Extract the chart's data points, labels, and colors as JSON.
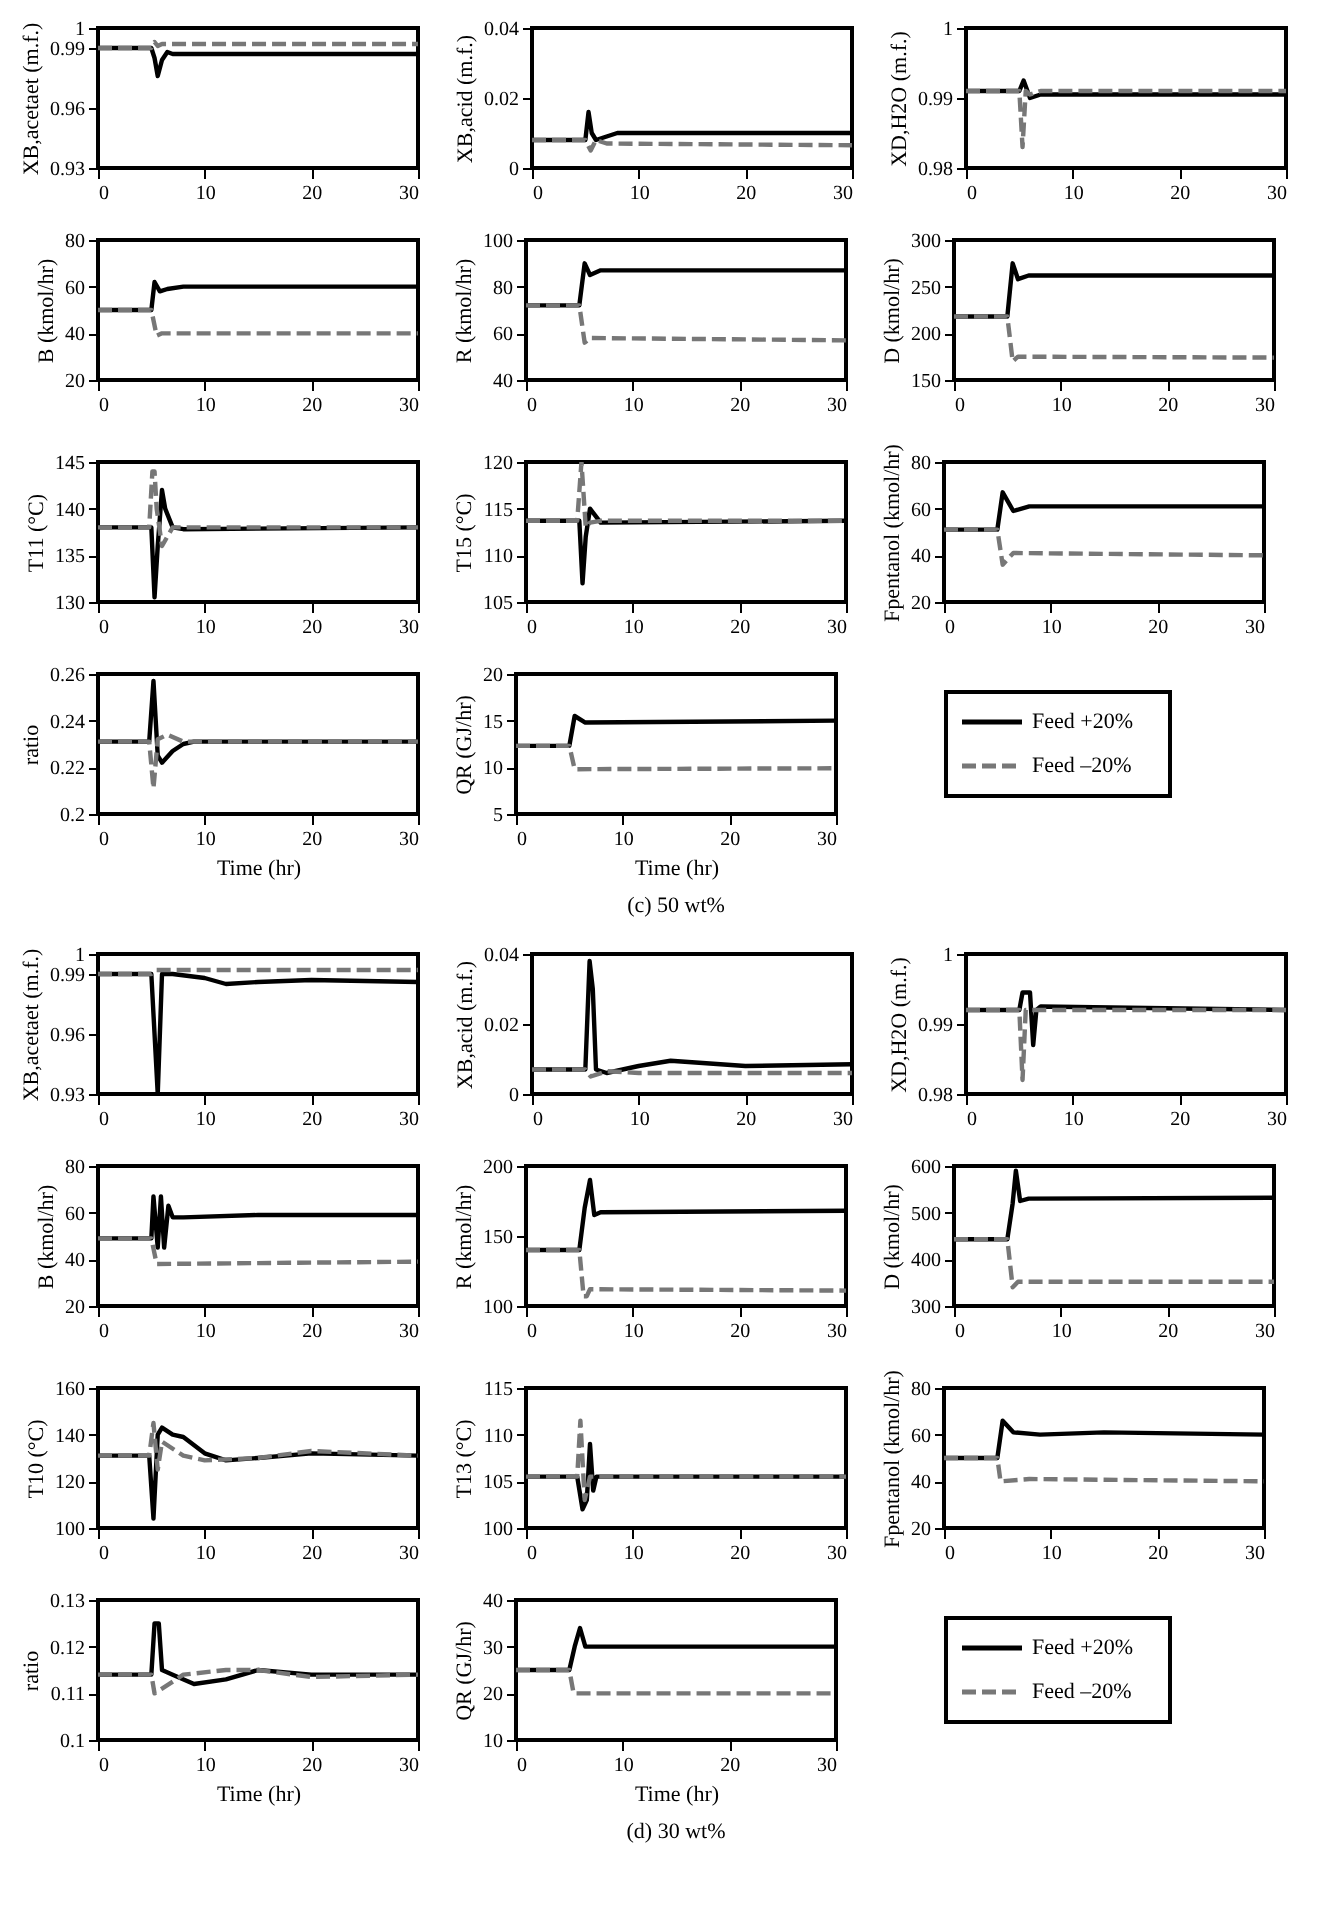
{
  "chart_data": [
    {
      "type": "line",
      "ylabel": "XB,acetaet (m.f.)",
      "xlim": [
        0,
        30
      ],
      "xticks": [
        0,
        10,
        20,
        30
      ],
      "ylim": [
        0.93,
        1
      ],
      "yticks": [
        0.93,
        0.96,
        0.99,
        1
      ],
      "series": [
        {
          "color": "#000000",
          "line_style": "solid",
          "x": [
            0,
            5,
            5.3,
            5.6,
            6,
            6.5,
            7,
            8,
            30
          ],
          "values": [
            0.99,
            0.99,
            0.985,
            0.976,
            0.984,
            0.988,
            0.987,
            0.987,
            0.987
          ]
        },
        {
          "color": "#777777",
          "line_style": "dashed",
          "x": [
            0,
            5,
            5.3,
            5.6,
            6,
            30
          ],
          "values": [
            0.99,
            0.99,
            0.993,
            0.991,
            0.992,
            0.992
          ]
        }
      ]
    },
    {
      "type": "line",
      "ylabel": "XB,acid (m.f.)",
      "xlim": [
        0,
        30
      ],
      "xticks": [
        0,
        10,
        20,
        30
      ],
      "ylim": [
        0,
        0.04
      ],
      "yticks": [
        0,
        0.02,
        0.04
      ],
      "series": [
        {
          "color": "#000000",
          "line_style": "solid",
          "x": [
            0,
            5,
            5.3,
            5.6,
            6,
            7,
            8,
            30
          ],
          "values": [
            0.008,
            0.008,
            0.016,
            0.01,
            0.008,
            0.009,
            0.01,
            0.01
          ]
        },
        {
          "color": "#777777",
          "line_style": "dashed",
          "x": [
            0,
            5,
            5.5,
            6,
            7,
            30
          ],
          "values": [
            0.008,
            0.008,
            0.005,
            0.008,
            0.007,
            0.0065
          ]
        }
      ]
    },
    {
      "type": "line",
      "ylabel": "XD,H2O (m.f.)",
      "xlim": [
        0,
        30
      ],
      "xticks": [
        0,
        10,
        20,
        30
      ],
      "ylim": [
        0.98,
        1
      ],
      "yticks": [
        0.98,
        0.99,
        1
      ],
      "series": [
        {
          "color": "#000000",
          "line_style": "solid",
          "x": [
            0,
            5,
            5.4,
            6,
            7,
            30
          ],
          "values": [
            0.991,
            0.991,
            0.9925,
            0.99,
            0.9905,
            0.9905
          ]
        },
        {
          "color": "#777777",
          "line_style": "dashed",
          "x": [
            0,
            5,
            5.3,
            5.6,
            6,
            7,
            30
          ],
          "values": [
            0.991,
            0.991,
            0.983,
            0.991,
            0.9905,
            0.991,
            0.991
          ]
        }
      ]
    },
    {
      "type": "line",
      "ylabel": "B (kmol/hr)",
      "xlim": [
        0,
        30
      ],
      "xticks": [
        0,
        10,
        20,
        30
      ],
      "ylim": [
        20,
        80
      ],
      "yticks": [
        20,
        40,
        60,
        80
      ],
      "series": [
        {
          "color": "#000000",
          "line_style": "solid",
          "x": [
            0,
            5,
            5.3,
            5.8,
            6.5,
            8,
            30
          ],
          "values": [
            50,
            50,
            62,
            58,
            59,
            60,
            60
          ]
        },
        {
          "color": "#777777",
          "line_style": "dashed",
          "x": [
            0,
            5,
            5.5,
            6,
            30
          ],
          "values": [
            50,
            50,
            39,
            40,
            40
          ]
        }
      ]
    },
    {
      "type": "line",
      "ylabel": "R (kmol/hr)",
      "xlim": [
        0,
        30
      ],
      "xticks": [
        0,
        10,
        20,
        30
      ],
      "ylim": [
        40,
        100
      ],
      "yticks": [
        40,
        60,
        80,
        100
      ],
      "series": [
        {
          "color": "#000000",
          "line_style": "solid",
          "x": [
            0,
            5,
            5.5,
            6,
            7,
            30
          ],
          "values": [
            72,
            72,
            90,
            85,
            87,
            87
          ]
        },
        {
          "color": "#777777",
          "line_style": "dashed",
          "x": [
            0,
            5,
            5.5,
            6,
            30
          ],
          "values": [
            72,
            72,
            56,
            58,
            57
          ]
        }
      ]
    },
    {
      "type": "line",
      "ylabel": "D (kmol/hr)",
      "xlim": [
        0,
        30
      ],
      "xticks": [
        0,
        10,
        20,
        30
      ],
      "ylim": [
        150,
        300
      ],
      "yticks": [
        150,
        200,
        250,
        300
      ],
      "series": [
        {
          "color": "#000000",
          "line_style": "solid",
          "x": [
            0,
            5,
            5.5,
            6,
            7,
            30
          ],
          "values": [
            218,
            218,
            275,
            258,
            262,
            262
          ]
        },
        {
          "color": "#777777",
          "line_style": "dashed",
          "x": [
            0,
            5,
            5.5,
            6,
            30
          ],
          "values": [
            218,
            218,
            170,
            175,
            174
          ]
        }
      ]
    },
    {
      "type": "line",
      "ylabel": "T11 (°C)",
      "xlim": [
        0,
        30
      ],
      "xticks": [
        0,
        10,
        20,
        30
      ],
      "ylim": [
        130,
        145
      ],
      "yticks": [
        130,
        135,
        140,
        145
      ],
      "series": [
        {
          "color": "#000000",
          "line_style": "solid",
          "x": [
            0,
            5,
            5.3,
            5.6,
            6,
            6.3,
            7,
            8,
            30
          ],
          "values": [
            138,
            138,
            130.5,
            136,
            142,
            140,
            138,
            137.8,
            138
          ]
        },
        {
          "color": "#777777",
          "line_style": "dashed",
          "x": [
            0,
            4.8,
            5.1,
            5.3,
            5.5,
            6,
            6.5,
            7,
            8,
            30
          ],
          "values": [
            138,
            138,
            144,
            144,
            140,
            136,
            137,
            138,
            138,
            138
          ]
        }
      ]
    },
    {
      "type": "line",
      "ylabel": "T15 (°C)",
      "xlim": [
        0,
        30
      ],
      "xticks": [
        0,
        10,
        20,
        30
      ],
      "ylim": [
        105,
        120
      ],
      "yticks": [
        105,
        110,
        115,
        120
      ],
      "series": [
        {
          "color": "#000000",
          "line_style": "solid",
          "x": [
            0,
            5,
            5.3,
            5.6,
            6,
            7,
            30
          ],
          "values": [
            113.7,
            113.7,
            107,
            112,
            115,
            113.5,
            113.7
          ]
        },
        {
          "color": "#777777",
          "line_style": "dashed",
          "x": [
            0,
            4.8,
            5.2,
            5.6,
            6,
            7,
            30
          ],
          "values": [
            113.7,
            113.7,
            120,
            113,
            113.5,
            113.7,
            113.7
          ]
        }
      ]
    },
    {
      "type": "line",
      "ylabel": "Fpentanol (kmol/hr)",
      "xlim": [
        0,
        30
      ],
      "xticks": [
        0,
        10,
        20,
        30
      ],
      "ylim": [
        20,
        80
      ],
      "yticks": [
        20,
        40,
        60,
        80
      ],
      "series": [
        {
          "color": "#000000",
          "line_style": "solid",
          "x": [
            0,
            5,
            5.5,
            6.5,
            8,
            30
          ],
          "values": [
            51,
            51,
            67,
            59,
            61,
            61
          ]
        },
        {
          "color": "#777777",
          "line_style": "dashed",
          "x": [
            0,
            5,
            5.5,
            6.5,
            30
          ],
          "values": [
            51,
            51,
            36,
            41,
            40
          ]
        }
      ]
    },
    {
      "type": "line",
      "xlabel": "Time (hr)",
      "ylabel": "ratio",
      "xlim": [
        0,
        30
      ],
      "xticks": [
        0,
        10,
        20,
        30
      ],
      "ylim": [
        0.2,
        0.26
      ],
      "yticks": [
        0.2,
        0.22,
        0.24,
        0.26
      ],
      "series": [
        {
          "color": "#000000",
          "line_style": "solid",
          "x": [
            0,
            4.8,
            5.2,
            5.6,
            6,
            7,
            8,
            9,
            30
          ],
          "values": [
            0.231,
            0.231,
            0.257,
            0.225,
            0.222,
            0.227,
            0.23,
            0.231,
            0.231
          ]
        },
        {
          "color": "#777777",
          "line_style": "dashed",
          "x": [
            0,
            4.8,
            5.2,
            5.6,
            6.5,
            8,
            30
          ],
          "values": [
            0.231,
            0.231,
            0.211,
            0.232,
            0.234,
            0.231,
            0.231
          ]
        }
      ]
    },
    {
      "type": "line",
      "xlabel": "Time (hr)",
      "ylabel": "QR (GJ/hr)",
      "annotations": [
        "(c) 50 wt%"
      ],
      "legend": "right",
      "xlim": [
        0,
        30
      ],
      "xticks": [
        0,
        10,
        20,
        30
      ],
      "ylim": [
        5,
        20
      ],
      "yticks": [
        5,
        10,
        15,
        20
      ],
      "series": [
        {
          "name": "Feed +20%",
          "color": "#000000",
          "line_style": "solid",
          "x": [
            0,
            5,
            5.5,
            6.5,
            30
          ],
          "values": [
            12.3,
            12.3,
            15.5,
            14.8,
            15
          ]
        },
        {
          "name": "Feed –20%",
          "color": "#777777",
          "line_style": "dashed",
          "x": [
            0,
            5,
            5.5,
            30
          ],
          "values": [
            12.3,
            12.3,
            9.8,
            9.9
          ]
        }
      ]
    },
    {
      "type": "line",
      "ylabel": "XB,acetaet (m.f.)",
      "xlim": [
        0,
        30
      ],
      "xticks": [
        0,
        10,
        20,
        30
      ],
      "ylim": [
        0.93,
        1
      ],
      "yticks": [
        0.93,
        0.96,
        0.99,
        1
      ],
      "series": [
        {
          "color": "#000000",
          "line_style": "solid",
          "x": [
            0,
            5,
            5.3,
            5.6,
            6,
            7,
            10,
            12,
            15,
            20,
            30
          ],
          "values": [
            0.99,
            0.99,
            0.96,
            0.93,
            0.99,
            0.99,
            0.988,
            0.985,
            0.986,
            0.987,
            0.986
          ]
        },
        {
          "color": "#777777",
          "line_style": "dashed",
          "x": [
            0,
            5,
            5.5,
            6,
            30
          ],
          "values": [
            0.99,
            0.99,
            0.992,
            0.992,
            0.992
          ]
        }
      ]
    },
    {
      "type": "line",
      "ylabel": "XB,acid (m.f.)",
      "xlim": [
        0,
        30
      ],
      "xticks": [
        0,
        10,
        20,
        30
      ],
      "ylim": [
        0,
        0.04
      ],
      "yticks": [
        0,
        0.02,
        0.04
      ],
      "series": [
        {
          "color": "#000000",
          "line_style": "solid",
          "x": [
            0,
            5,
            5.4,
            5.7,
            6,
            7,
            10,
            13,
            20,
            30
          ],
          "values": [
            0.007,
            0.007,
            0.038,
            0.03,
            0.007,
            0.006,
            0.008,
            0.0095,
            0.008,
            0.0085
          ]
        },
        {
          "color": "#777777",
          "line_style": "dashed",
          "x": [
            0,
            5,
            5.5,
            7,
            10,
            30
          ],
          "values": [
            0.007,
            0.007,
            0.005,
            0.0065,
            0.006,
            0.006
          ]
        }
      ]
    },
    {
      "type": "line",
      "ylabel": "XD,H2O (m.f.)",
      "xlim": [
        0,
        30
      ],
      "xticks": [
        0,
        10,
        20,
        30
      ],
      "ylim": [
        0.98,
        1
      ],
      "yticks": [
        0.98,
        0.99,
        1
      ],
      "series": [
        {
          "color": "#000000",
          "line_style": "solid",
          "x": [
            0,
            5,
            5.3,
            6,
            6.3,
            6.6,
            7,
            30
          ],
          "values": [
            0.992,
            0.992,
            0.9945,
            0.9945,
            0.987,
            0.992,
            0.9925,
            0.992
          ]
        },
        {
          "color": "#777777",
          "line_style": "dashed",
          "x": [
            0,
            5,
            5.3,
            5.6,
            6,
            30
          ],
          "values": [
            0.992,
            0.992,
            0.982,
            0.992,
            0.992,
            0.992
          ]
        }
      ]
    },
    {
      "type": "line",
      "ylabel": "B (kmol/hr)",
      "xlim": [
        0,
        30
      ],
      "xticks": [
        0,
        10,
        20,
        30
      ],
      "ylim": [
        20,
        80
      ],
      "yticks": [
        20,
        40,
        60,
        80
      ],
      "series": [
        {
          "color": "#000000",
          "line_style": "solid",
          "x": [
            0,
            5,
            5.2,
            5.6,
            5.9,
            6.2,
            6.6,
            7,
            8,
            15,
            30
          ],
          "values": [
            49,
            49,
            67,
            45,
            67,
            45,
            63,
            58,
            58,
            59,
            59
          ]
        },
        {
          "color": "#777777",
          "line_style": "dashed",
          "x": [
            0,
            5,
            5.5,
            30
          ],
          "values": [
            49,
            49,
            38,
            39
          ]
        }
      ]
    },
    {
      "type": "line",
      "ylabel": "R (kmol/hr)",
      "xlim": [
        0,
        30
      ],
      "xticks": [
        0,
        10,
        20,
        30
      ],
      "ylim": [
        100,
        200
      ],
      "yticks": [
        100,
        150,
        200
      ],
      "series": [
        {
          "color": "#000000",
          "line_style": "solid",
          "x": [
            0,
            5,
            5.5,
            6,
            6.4,
            7,
            30
          ],
          "values": [
            140,
            140,
            170,
            190,
            165,
            167,
            168
          ]
        },
        {
          "color": "#777777",
          "line_style": "dashed",
          "x": [
            0,
            5,
            5.4,
            5.7,
            6,
            30
          ],
          "values": [
            140,
            140,
            107,
            107,
            112,
            111
          ]
        }
      ]
    },
    {
      "type": "line",
      "ylabel": "D (kmol/hr)",
      "xlim": [
        0,
        30
      ],
      "xticks": [
        0,
        10,
        20,
        30
      ],
      "ylim": [
        300,
        600
      ],
      "yticks": [
        300,
        400,
        500,
        600
      ],
      "series": [
        {
          "color": "#000000",
          "line_style": "solid",
          "x": [
            0,
            5,
            5.5,
            5.8,
            6.2,
            7,
            30
          ],
          "values": [
            443,
            443,
            520,
            590,
            525,
            530,
            532
          ]
        },
        {
          "color": "#777777",
          "line_style": "dashed",
          "x": [
            0,
            5,
            5.5,
            6,
            30
          ],
          "values": [
            443,
            443,
            340,
            352,
            352
          ]
        }
      ]
    },
    {
      "type": "line",
      "ylabel": "T10 (°C)",
      "xlim": [
        0,
        30
      ],
      "xticks": [
        0,
        10,
        20,
        30
      ],
      "ylim": [
        100,
        160
      ],
      "yticks": [
        100,
        120,
        140,
        160
      ],
      "series": [
        {
          "color": "#000000",
          "line_style": "solid",
          "x": [
            0,
            4.8,
            5.2,
            5.6,
            6,
            7,
            8,
            10,
            12,
            15,
            20,
            30
          ],
          "values": [
            131,
            131,
            104,
            140,
            143,
            140,
            139,
            132,
            129,
            130,
            132,
            131
          ]
        },
        {
          "color": "#777777",
          "line_style": "dashed",
          "x": [
            0,
            4.8,
            5.2,
            5.6,
            6,
            8,
            10,
            15,
            20,
            30
          ],
          "values": [
            131,
            131,
            145,
            125,
            137,
            131,
            129,
            130,
            133,
            131
          ]
        }
      ]
    },
    {
      "type": "line",
      "ylabel": "T13 (°C)",
      "xlim": [
        0,
        30
      ],
      "xticks": [
        0,
        10,
        20,
        30
      ],
      "ylim": [
        100,
        115
      ],
      "yticks": [
        100,
        105,
        110,
        115
      ],
      "series": [
        {
          "color": "#000000",
          "line_style": "solid",
          "x": [
            0,
            4.8,
            5.3,
            5.7,
            6,
            6.3,
            6.6,
            30
          ],
          "values": [
            105.5,
            105.5,
            102,
            103,
            109,
            104,
            105.5,
            105.5
          ]
        },
        {
          "color": "#777777",
          "line_style": "dashed",
          "x": [
            0,
            4.8,
            5.1,
            5.5,
            6,
            30
          ],
          "values": [
            105.5,
            105.5,
            111.5,
            103,
            105.5,
            105.5
          ]
        }
      ]
    },
    {
      "type": "line",
      "ylabel": "Fpentanol (kmol/hr)",
      "xlim": [
        0,
        30
      ],
      "xticks": [
        0,
        10,
        20,
        30
      ],
      "ylim": [
        20,
        80
      ],
      "yticks": [
        20,
        40,
        60,
        80
      ],
      "series": [
        {
          "color": "#000000",
          "line_style": "solid",
          "x": [
            0,
            5,
            5.5,
            6.5,
            9,
            15,
            30
          ],
          "values": [
            50,
            50,
            66,
            61,
            60,
            61,
            60
          ]
        },
        {
          "color": "#777777",
          "line_style": "dashed",
          "x": [
            0,
            5,
            5.3,
            8,
            30
          ],
          "values": [
            50,
            50,
            40,
            41,
            40
          ]
        }
      ]
    },
    {
      "type": "line",
      "xlabel": "Time (hr)",
      "ylabel": "ratio",
      "xlim": [
        0,
        30
      ],
      "xticks": [
        0,
        10,
        20,
        30
      ],
      "ylim": [
        0.1,
        0.13
      ],
      "yticks": [
        0.1,
        0.11,
        0.12,
        0.13
      ],
      "series": [
        {
          "color": "#000000",
          "line_style": "solid",
          "x": [
            0,
            5,
            5.3,
            5.7,
            6,
            7,
            9,
            12,
            15,
            20,
            30
          ],
          "values": [
            0.114,
            0.114,
            0.125,
            0.125,
            0.115,
            0.114,
            0.112,
            0.113,
            0.115,
            0.114,
            0.114
          ]
        },
        {
          "color": "#777777",
          "line_style": "dashed",
          "x": [
            0,
            5,
            5.3,
            6,
            8,
            12,
            15,
            20,
            30
          ],
          "values": [
            0.114,
            0.114,
            0.11,
            0.111,
            0.114,
            0.115,
            0.115,
            0.1135,
            0.114
          ]
        }
      ]
    },
    {
      "type": "line",
      "xlabel": "Time (hr)",
      "ylabel": "QR (GJ/hr)",
      "annotations": [
        "(d) 30 wt%"
      ],
      "legend": "right",
      "xlim": [
        0,
        30
      ],
      "xticks": [
        0,
        10,
        20,
        30
      ],
      "ylim": [
        10,
        40
      ],
      "yticks": [
        10,
        20,
        30,
        40
      ],
      "series": [
        {
          "name": "Feed +20%",
          "color": "#000000",
          "line_style": "solid",
          "x": [
            0,
            5,
            5.5,
            6,
            6.5,
            30
          ],
          "values": [
            25,
            25,
            30,
            34,
            30,
            30
          ]
        },
        {
          "name": "Feed –20%",
          "color": "#777777",
          "line_style": "dashed",
          "x": [
            0,
            5,
            5.4,
            30
          ],
          "values": [
            25,
            25,
            20,
            20
          ]
        }
      ]
    }
  ]
}
